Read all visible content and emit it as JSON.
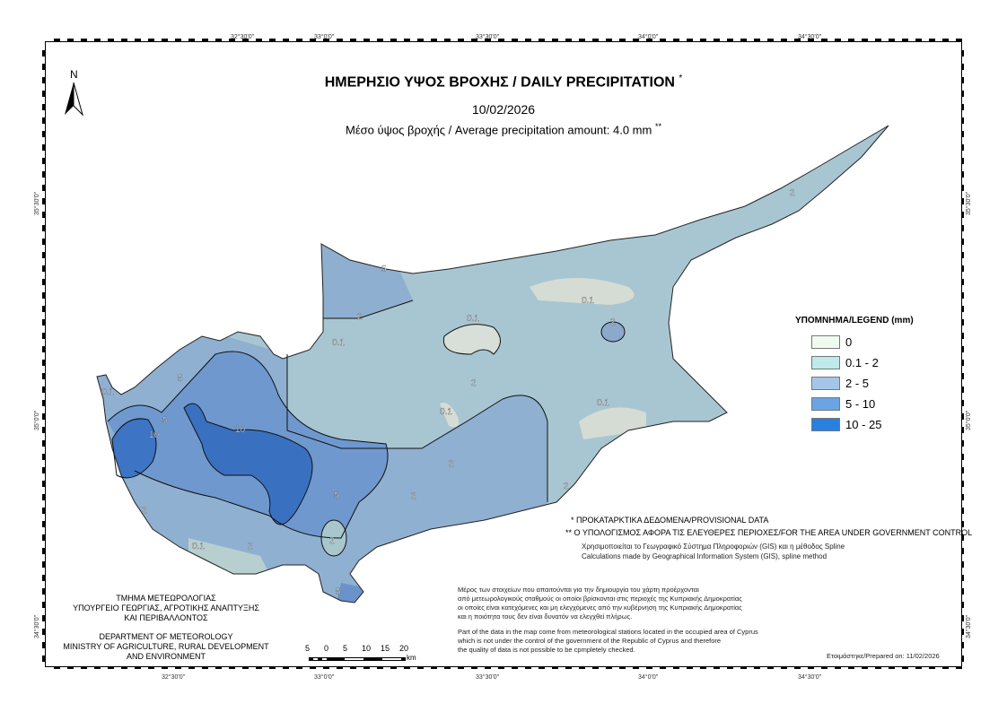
{
  "header": {
    "title": "ΗΜΕΡΗΣΙΟ ΥΨΟΣ ΒΡΟΧΗΣ / DAILY PRECIPITATION",
    "title_mark": "*",
    "date": "10/02/2026",
    "average": "Μέσο ύψος βροχής / Average precipitation amount: 4.0 mm",
    "average_mark": "**"
  },
  "north_arrow": {
    "label": "N"
  },
  "graticule": {
    "longitudes": [
      "32°30'0\"",
      "33°0'0\"",
      "33°30'0\"",
      "34°0'0\"",
      "34°30'0\""
    ],
    "latitudes": [
      "35°30'0\"",
      "35°0'0\"",
      "34°30'0\""
    ]
  },
  "legend": {
    "title": "ΥΠΟΜΝΗΜΑ/LEGEND (mm)",
    "items": [
      {
        "label": "0",
        "color": "#f0fbf0"
      },
      {
        "label": "0.1 - 2",
        "color": "#bfe9ea"
      },
      {
        "label": "2 - 5",
        "color": "#a4c7e8"
      },
      {
        "label": "5 - 10",
        "color": "#6aa4e3"
      },
      {
        "label": "10 - 25",
        "color": "#2a80de"
      }
    ]
  },
  "contour_labels": [
    "5",
    "2",
    "0.1",
    "0.1",
    "2",
    "0.1",
    "2",
    "0.1",
    "5",
    "10",
    "10",
    "5",
    "2",
    "2",
    "2",
    "2",
    "0.1",
    "0.1",
    "2",
    "5",
    "5",
    "0.1",
    "2",
    "2"
  ],
  "notes": {
    "provisional": "* ΠΡΟΚΑΤΑΡΚΤΙΚΑ ΔΕΔΟΜΕΝΑ/PROVISIONAL DATA",
    "area": "** Ο ΥΠΟΛΟΓΙΣΜΟΣ ΑΦΟΡΑ ΤΙΣ ΕΛΕΥΘΕΡΕΣ ΠΕΡΙΟΧΕΣ/FOR THE AREA UNDER GOVERNMENT CONTROL",
    "gis_gr": "Χρησιμοποιείται το Γεωγραφικό Σύστημα Πληροφοριών (GIS) και η μέθοδος Spline",
    "gis_en": "Calculations made by Geographical Information System (GIS), spline method",
    "occupied_gr": [
      "Μέρος των στοιχείων που απαιτούνται για την δημιουργία του χάρτη προέρχονται",
      "από μετεωρολογικούς σταθμούς οι οποίοι βρίσκονται στις περιοχές της Κυπριακής Δημοκρατίας",
      "οι οποίες είναι κατεχόμενες και μη ελεγχόμενες από την κυβέρνηση της Κυπριακής Δημοκρατίας",
      "και η ποιότητα τους δεν είναι δυνατόν να ελεγχθεί πλήρως."
    ],
    "occupied_en": [
      "Part of the data in the map come from meteorological stations located in the occupied area of Cyprus",
      "which is not under the control of the government of the Republic of Cyprus and therefore",
      "the quality of data is not possible to be cpmpletely checked."
    ],
    "prepared": "Ετοιμάστηκε/Prepared on: 11/02/2026"
  },
  "department": {
    "gr": [
      "ΤΜΗΜΑ ΜΕΤΕΩΡΟΛΟΓΙΑΣ",
      "ΥΠΟΥΡΓΕΙΟ ΓΕΩΡΓΙΑΣ, ΑΓΡΟΤΙΚΗΣ ΑΝΑΠΤΥΞΗΣ",
      "ΚΑΙ ΠΕΡΙΒΑΛΛΟΝΤΟΣ"
    ],
    "en": [
      "DEPARTMENT OF METEOROLOGY",
      "MINISTRY OF AGRICULTURE, RURAL DEVELOPMENT",
      "AND ENVIRONMENT"
    ]
  },
  "scale_bar": {
    "ticks": [
      "5",
      "0",
      "5",
      "10",
      "15",
      "20"
    ],
    "unit": "km"
  }
}
